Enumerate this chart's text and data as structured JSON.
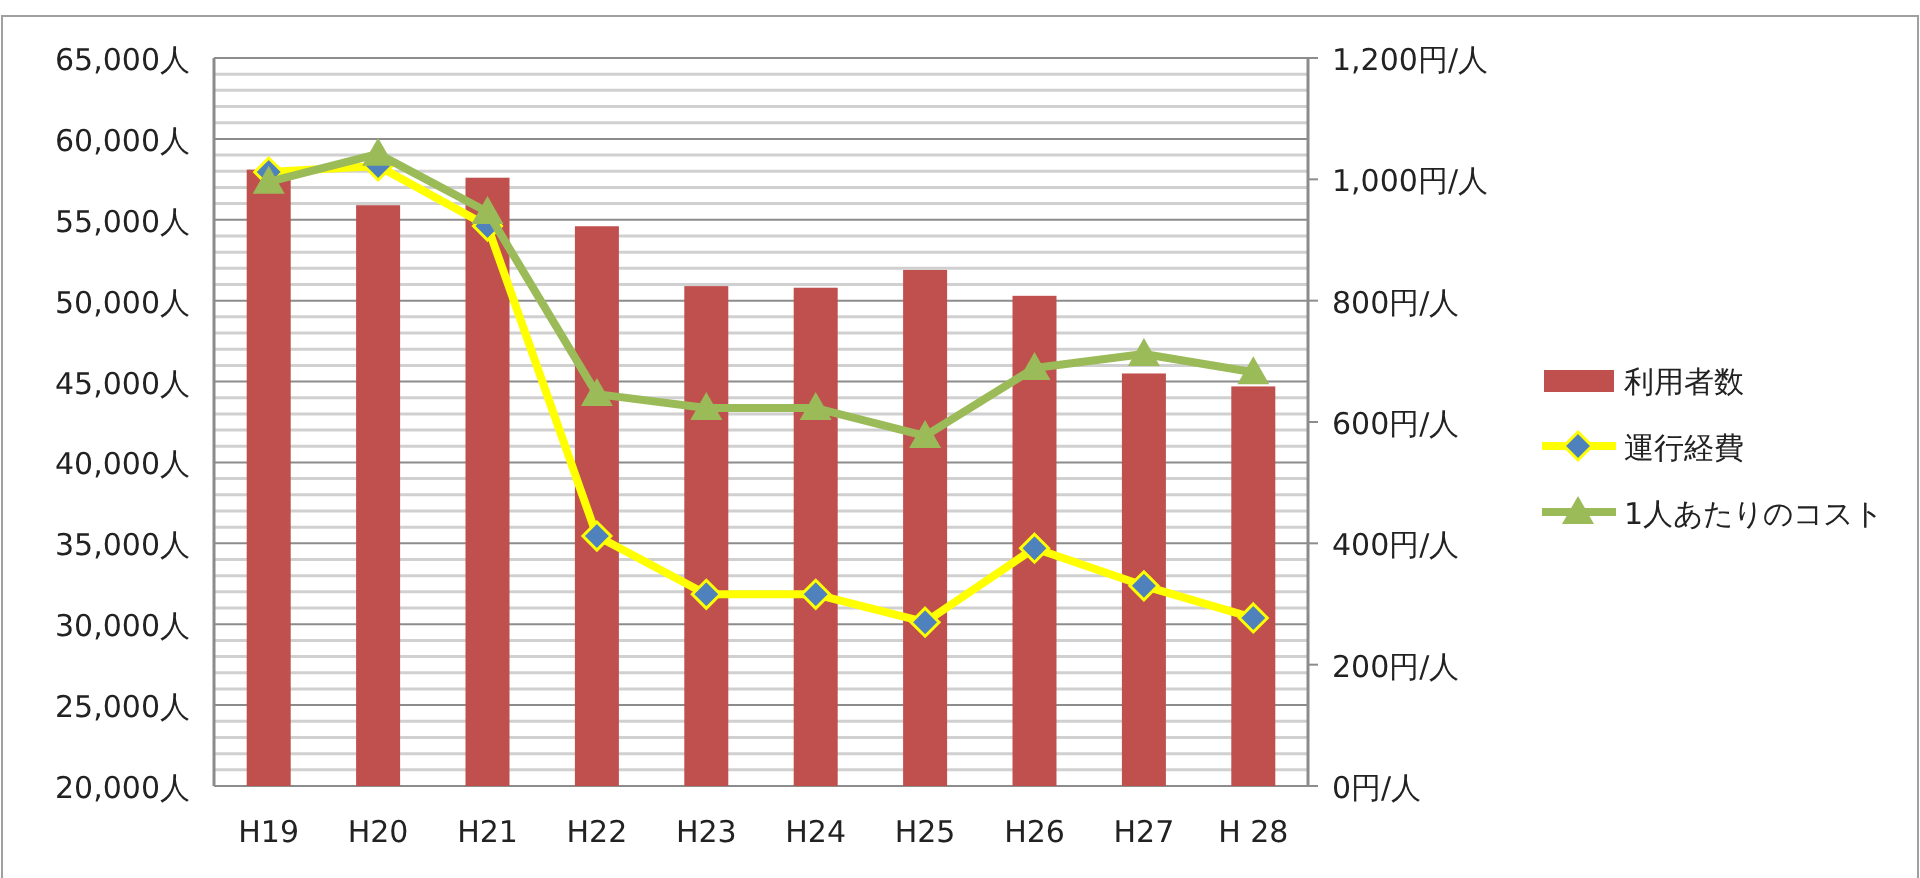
{
  "chart_data": {
    "type": "bar",
    "categories": [
      "H19",
      "H20",
      "H21",
      "H22",
      "H23",
      "H24",
      "H25",
      "H26",
      "H27",
      "H 28"
    ],
    "series": [
      {
        "name": "利用者数",
        "color": "#c0504d",
        "values": [
          58100,
          55900,
          57600,
          54600,
          50900,
          50800,
          51900,
          50300,
          45500,
          44700
        ]
      },
      {
        "name": "運行経費",
        "type": "line",
        "axis": "y2",
        "color": "#ffff00",
        "marker": "diamond",
        "values": [
          1012,
          1022,
          923,
          412,
          316,
          316,
          270,
          392,
          330,
          277
        ]
      },
      {
        "name": "1人あたりのコスト",
        "type": "line",
        "axis": "y2",
        "color": "#9bbb59",
        "marker": "triangle",
        "values": [
          996,
          1042,
          946,
          646,
          623,
          623,
          577,
          689,
          712,
          682
        ]
      }
    ],
    "ylim": [
      20000,
      65000
    ],
    "yticks": [
      {
        "value": 20000,
        "label": "20,000人"
      },
      {
        "value": 21000,
        "label": null
      },
      {
        "value": 22000,
        "label": null
      },
      {
        "value": 23000,
        "label": null
      },
      {
        "value": 24000,
        "label": null
      },
      {
        "value": 25000,
        "label": "25,000人"
      },
      {
        "value": 26000,
        "label": null
      },
      {
        "value": 27000,
        "label": null
      },
      {
        "value": 28000,
        "label": null
      },
      {
        "value": 29000,
        "label": null
      },
      {
        "value": 30000,
        "label": "30,000人"
      },
      {
        "value": 31000,
        "label": null
      },
      {
        "value": 32000,
        "label": null
      },
      {
        "value": 33000,
        "label": null
      },
      {
        "value": 34000,
        "label": null
      },
      {
        "value": 35000,
        "label": "35,000人"
      },
      {
        "value": 36000,
        "label": null
      },
      {
        "value": 37000,
        "label": null
      },
      {
        "value": 38000,
        "label": null
      },
      {
        "value": 39000,
        "label": null
      },
      {
        "value": 40000,
        "label": "40,000人"
      },
      {
        "value": 41000,
        "label": null
      },
      {
        "value": 42000,
        "label": null
      },
      {
        "value": 43000,
        "label": null
      },
      {
        "value": 44000,
        "label": null
      },
      {
        "value": 45000,
        "label": "45,000人"
      },
      {
        "value": 46000,
        "label": null
      },
      {
        "value": 47000,
        "label": null
      },
      {
        "value": 48000,
        "label": null
      },
      {
        "value": 49000,
        "label": null
      },
      {
        "value": 50000,
        "label": "50,000人"
      },
      {
        "value": 51000,
        "label": null
      },
      {
        "value": 52000,
        "label": null
      },
      {
        "value": 53000,
        "label": null
      },
      {
        "value": 54000,
        "label": null
      },
      {
        "value": 55000,
        "label": "55,000人"
      },
      {
        "value": 56000,
        "label": null
      },
      {
        "value": 57000,
        "label": null
      },
      {
        "value": 58000,
        "label": null
      },
      {
        "value": 59000,
        "label": null
      },
      {
        "value": 60000,
        "label": "60,000人"
      },
      {
        "value": 61000,
        "label": null
      },
      {
        "value": 62000,
        "label": null
      },
      {
        "value": 63000,
        "label": null
      },
      {
        "value": 64000,
        "label": null
      },
      {
        "value": 65000,
        "label": "65,000人"
      }
    ],
    "y2lim": [
      0,
      1200
    ],
    "y2ticks": [
      {
        "value": 0,
        "label": "0円/人"
      },
      {
        "value": 200,
        "label": "200円/人"
      },
      {
        "value": 400,
        "label": "400円/人"
      },
      {
        "value": 600,
        "label": "600円/人"
      },
      {
        "value": 800,
        "label": "800円/人"
      },
      {
        "value": 1000,
        "label": "1,000円/人"
      },
      {
        "value": 1200,
        "label": "1,200円/人"
      }
    ],
    "grid": "y",
    "legend": "right"
  }
}
